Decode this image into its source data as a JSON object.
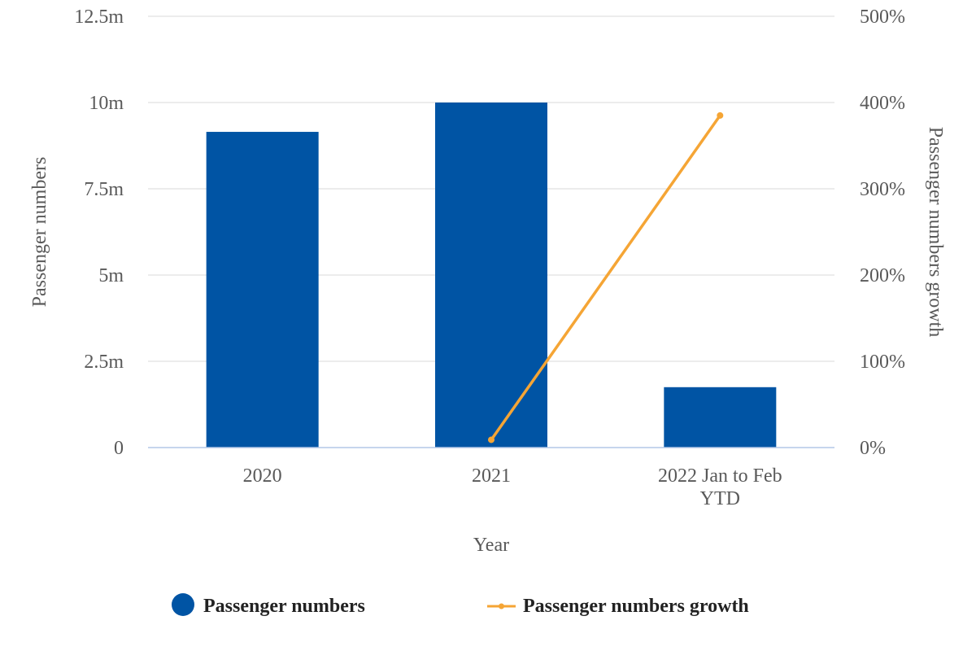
{
  "chart_data": {
    "type": "bar",
    "categories": [
      "2020",
      "2021",
      "2022 Jan to Feb YTD"
    ],
    "series": [
      {
        "name": "Passenger numbers",
        "type": "bar",
        "axis": "left",
        "color": "#0054a4",
        "values": [
          9150000,
          10000000,
          1750000
        ]
      },
      {
        "name": "Passenger numbers growth",
        "type": "line",
        "axis": "right",
        "color": "#f5a535",
        "values": [
          null,
          9,
          385
        ]
      }
    ],
    "xlabel": "Year",
    "ylabel": "Passenger numbers",
    "y2label": "Passenger numbers growth",
    "ylim": [
      0,
      12500000
    ],
    "y2lim": [
      0,
      500
    ],
    "yticks": [
      "0",
      "2.5m",
      "5m",
      "7.5m",
      "10m",
      "12.5m"
    ],
    "y2ticks": [
      "0%",
      "100%",
      "200%",
      "300%",
      "400%",
      "500%"
    ],
    "grid": true,
    "legend_position": "bottom"
  }
}
